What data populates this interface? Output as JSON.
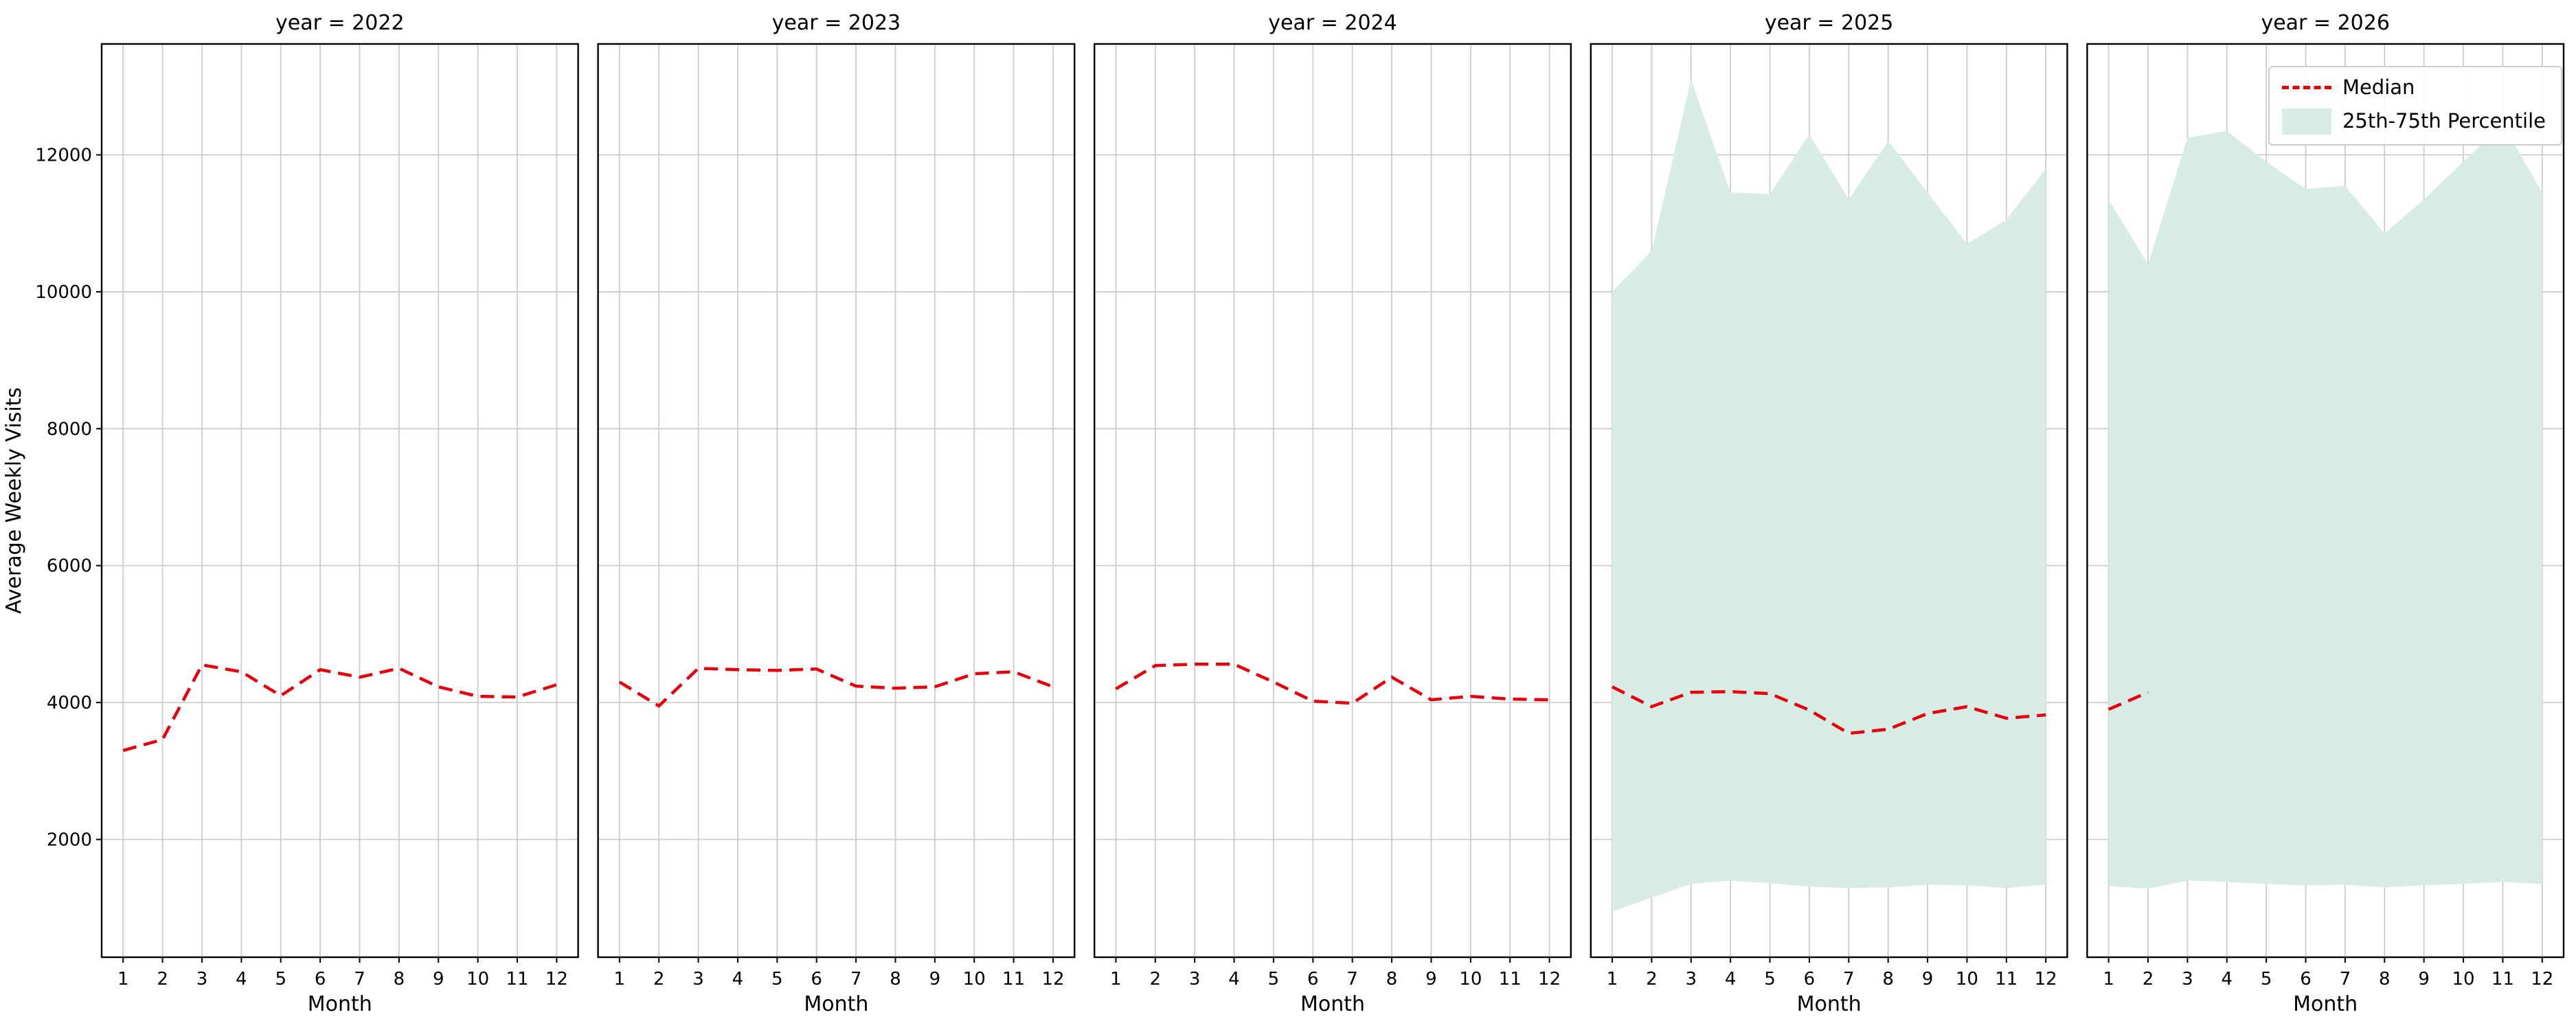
{
  "figure": {
    "ylabel": "Average Weekly Visits",
    "xlabel": "Month"
  },
  "legend": [
    {
      "label": "Median",
      "type": "line",
      "color": "#e8000b"
    },
    {
      "label": "25th-75th Percentile",
      "type": "patch",
      "color": "#d8ece6"
    }
  ],
  "chart_data": {
    "type": "line",
    "facet_by": "year",
    "x": [
      1,
      2,
      3,
      4,
      5,
      6,
      7,
      8,
      9,
      10,
      11,
      12
    ],
    "xlabel": "Month",
    "ylabel": "Average Weekly Visits",
    "ylim": [
      280,
      13620
    ],
    "yticks": [
      2000,
      4000,
      6000,
      8000,
      10000,
      12000
    ],
    "grid": true,
    "median_color": "#e8000b",
    "band_color": "#d8ece6",
    "grid_color": "#cccccc",
    "spine_color": "#000000",
    "facets": [
      {
        "title": "year = 2022",
        "year": 2022,
        "median": [
          3300,
          3460,
          4550,
          4450,
          4100,
          4480,
          4370,
          4500,
          4230,
          4090,
          4080,
          4260
        ],
        "q25": null,
        "q75": null
      },
      {
        "title": "year = 2023",
        "year": 2023,
        "median": [
          4300,
          3950,
          4500,
          4480,
          4470,
          4490,
          4240,
          4210,
          4230,
          4420,
          4450,
          4230
        ],
        "q25": null,
        "q75": null
      },
      {
        "title": "year = 2024",
        "year": 2024,
        "median": [
          4200,
          4540,
          4560,
          4560,
          4300,
          4020,
          3990,
          4370,
          4040,
          4090,
          4050,
          4040
        ],
        "q25": null,
        "q75": null
      },
      {
        "title": "year = 2025",
        "year": 2025,
        "median": [
          4230,
          3940,
          4150,
          4160,
          4130,
          3890,
          3550,
          3610,
          3840,
          3940,
          3770,
          3820
        ],
        "q25": [
          950,
          1150,
          1350,
          1400,
          1360,
          1310,
          1290,
          1300,
          1340,
          1330,
          1290,
          1340
        ],
        "q75": [
          10000,
          10600,
          13100,
          11450,
          11430,
          12300,
          11350,
          12200,
          11450,
          10700,
          11050,
          11800
        ]
      },
      {
        "title": "year = 2026",
        "year": 2026,
        "median": [
          3900,
          4150,
          null,
          null,
          null,
          null,
          null,
          null,
          null,
          null,
          null,
          null
        ],
        "q25": [
          1320,
          1280,
          1400,
          1380,
          1350,
          1330,
          1340,
          1300,
          1330,
          1350,
          1380,
          1350
        ],
        "q75": [
          11350,
          10400,
          12250,
          12350,
          11900,
          11500,
          11550,
          10850,
          11350,
          11900,
          12450,
          11450
        ]
      }
    ]
  }
}
